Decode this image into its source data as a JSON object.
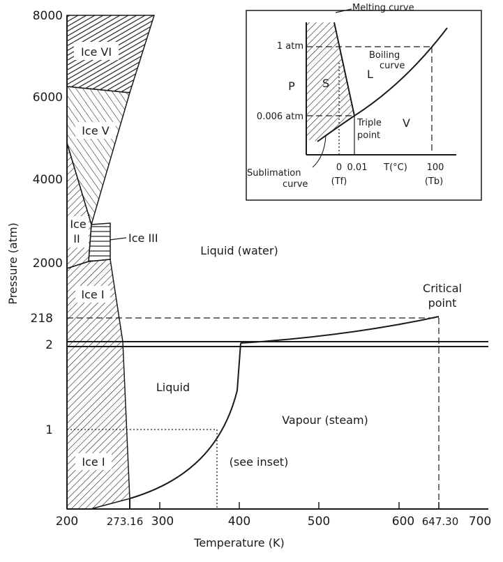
{
  "axes": {
    "ylabel": "Pressure (atm)",
    "xlabel": "Temperature (K)",
    "yticks": [
      "8000",
      "6000",
      "4000",
      "2000",
      "218",
      "2",
      "1"
    ],
    "xticks": [
      "200",
      "273.16",
      "300",
      "400",
      "500",
      "600",
      "647.30",
      "700"
    ]
  },
  "regions": {
    "ice6": "Ice VI",
    "ice5": "Ice V",
    "ice2a": "Ice",
    "ice2b": "II",
    "ice3": "Ice III",
    "ice1_upper": "Ice I",
    "ice1_lower": "Ice I",
    "liquid_water": "Liquid (water)",
    "liquid": "Liquid",
    "vapour": "Vapour (steam)",
    "see_inset": "(see inset)",
    "critical1": "Critical",
    "critical2": "point"
  },
  "inset": {
    "p_label": "P",
    "y1": "1 atm",
    "y2": "0.006 atm",
    "x0": "0",
    "x001": "0.01",
    "xlabel": "T(°C)",
    "x100": "100",
    "tf": "(Tf)",
    "tb": "(Tb)",
    "melting": "Melting curve",
    "boiling1": "Boiling",
    "boiling2": "curve",
    "s": "S",
    "l": "L",
    "v": "V",
    "triple1": "Triple",
    "triple2": "point",
    "sub1": "Sublimation",
    "sub2": "curve"
  }
}
